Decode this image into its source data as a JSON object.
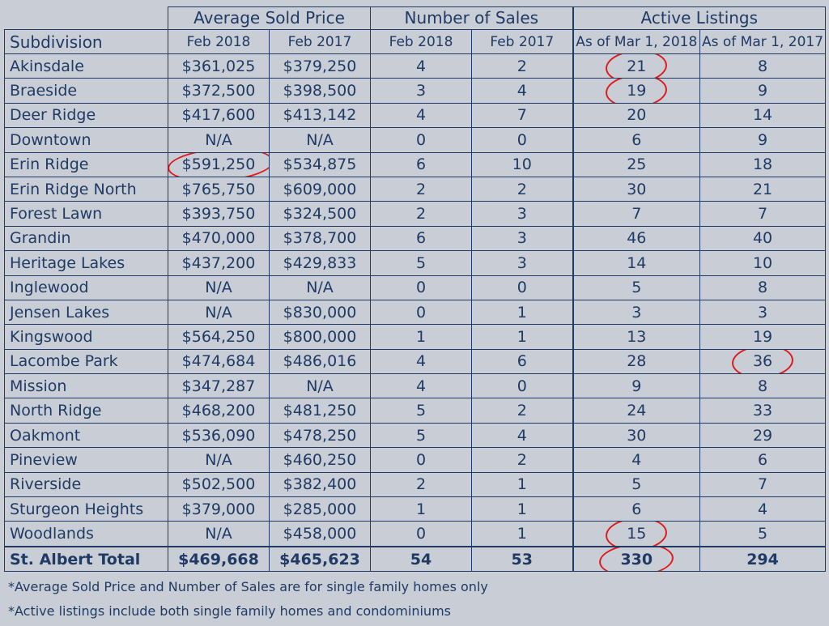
{
  "table": {
    "groups": {
      "avg_price": "Average Sold Price",
      "num_sales": "Number of Sales",
      "active": "Active Listings"
    },
    "subheaders": {
      "subdivision": "Subdivision",
      "feb2018_a": "Feb 2018",
      "feb2017_a": "Feb 2017",
      "feb2018_b": "Feb 2018",
      "feb2017_b": "Feb 2017",
      "mar2018": "As of Mar 1, 2018",
      "mar2017": "As of Mar 1, 2017"
    },
    "rows": [
      {
        "name": "Akinsdale",
        "p18": "$361,025",
        "p17": "$379,250",
        "s18": "4",
        "s17": "2",
        "a18": "21",
        "a17": "8"
      },
      {
        "name": "Braeside",
        "p18": "$372,500",
        "p17": "$398,500",
        "s18": "3",
        "s17": "4",
        "a18": "19",
        "a17": "9"
      },
      {
        "name": "Deer Ridge",
        "p18": "$417,600",
        "p17": "$413,142",
        "s18": "4",
        "s17": "7",
        "a18": "20",
        "a17": "14"
      },
      {
        "name": "Downtown",
        "p18": "N/A",
        "p17": "N/A",
        "s18": "0",
        "s17": "0",
        "a18": "6",
        "a17": "9"
      },
      {
        "name": "Erin Ridge",
        "p18": "$591,250",
        "p17": "$534,875",
        "s18": "6",
        "s17": "10",
        "a18": "25",
        "a17": "18"
      },
      {
        "name": "Erin Ridge North",
        "p18": "$765,750",
        "p17": "$609,000",
        "s18": "2",
        "s17": "2",
        "a18": "30",
        "a17": "21"
      },
      {
        "name": "Forest Lawn",
        "p18": "$393,750",
        "p17": "$324,500",
        "s18": "2",
        "s17": "3",
        "a18": "7",
        "a17": "7"
      },
      {
        "name": "Grandin",
        "p18": "$470,000",
        "p17": "$378,700",
        "s18": "6",
        "s17": "3",
        "a18": "46",
        "a17": "40"
      },
      {
        "name": "Heritage Lakes",
        "p18": "$437,200",
        "p17": "$429,833",
        "s18": "5",
        "s17": "3",
        "a18": "14",
        "a17": "10"
      },
      {
        "name": "Inglewood",
        "p18": "N/A",
        "p17": "N/A",
        "s18": "0",
        "s17": "0",
        "a18": "5",
        "a17": "8"
      },
      {
        "name": "Jensen Lakes",
        "p18": "N/A",
        "p17": "$830,000",
        "s18": "0",
        "s17": "1",
        "a18": "3",
        "a17": "3"
      },
      {
        "name": "Kingswood",
        "p18": "$564,250",
        "p17": "$800,000",
        "s18": "1",
        "s17": "1",
        "a18": "13",
        "a17": "19"
      },
      {
        "name": "Lacombe Park",
        "p18": "$474,684",
        "p17": "$486,016",
        "s18": "4",
        "s17": "6",
        "a18": "28",
        "a17": "36"
      },
      {
        "name": "Mission",
        "p18": "$347,287",
        "p17": "N/A",
        "s18": "4",
        "s17": "0",
        "a18": "9",
        "a17": "8"
      },
      {
        "name": "North Ridge",
        "p18": "$468,200",
        "p17": "$481,250",
        "s18": "5",
        "s17": "2",
        "a18": "24",
        "a17": "33"
      },
      {
        "name": "Oakmont",
        "p18": "$536,090",
        "p17": "$478,250",
        "s18": "5",
        "s17": "4",
        "a18": "30",
        "a17": "29"
      },
      {
        "name": "Pineview",
        "p18": "N/A",
        "p17": "$460,250",
        "s18": "0",
        "s17": "2",
        "a18": "4",
        "a17": "6"
      },
      {
        "name": "Riverside",
        "p18": "$502,500",
        "p17": "$382,400",
        "s18": "2",
        "s17": "1",
        "a18": "5",
        "a17": "7"
      },
      {
        "name": "Sturgeon Heights",
        "p18": "$379,000",
        "p17": "$285,000",
        "s18": "1",
        "s17": "1",
        "a18": "6",
        "a17": "4"
      },
      {
        "name": "Woodlands",
        "p18": "N/A",
        "p17": "$458,000",
        "s18": "0",
        "s17": "1",
        "a18": "15",
        "a17": "5"
      }
    ],
    "total": {
      "name": "St. Albert Total",
      "p18": "$469,668",
      "p17": "$465,623",
      "s18": "54",
      "s17": "53",
      "a18": "330",
      "a17": "294"
    }
  },
  "annotations": {
    "circle_color": "#e01a1a",
    "circled": [
      "Akinsdale.a18",
      "Braeside.a18",
      "Erin Ridge.p18",
      "Lacombe Park.a17",
      "Woodlands.a18",
      "total.a18"
    ]
  },
  "notes": [
    "*Average Sold Price and Number of Sales are for single family homes only",
    "*Active listings include both single family homes and condominiums"
  ]
}
